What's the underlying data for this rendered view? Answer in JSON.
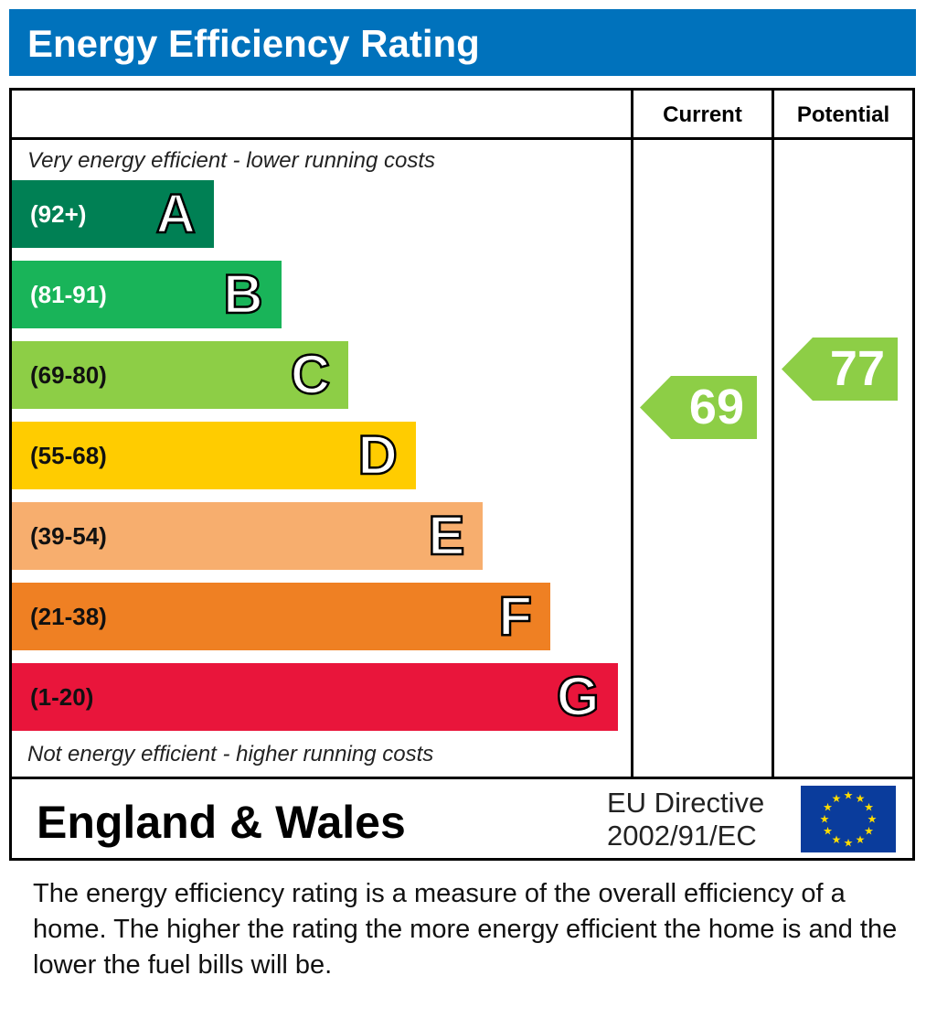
{
  "title": "Energy Efficiency Rating",
  "columns": {
    "current": "Current",
    "potential": "Potential"
  },
  "top_note": "Very energy efficient - lower running costs",
  "bottom_note": "Not energy efficient - higher running costs",
  "region": "England & Wales",
  "directive": {
    "line1": "EU Directive",
    "line2": "2002/91/EC"
  },
  "flag": "eu-flag-icon",
  "description": "The energy efficiency rating is a measure of the overall efficiency of a home.  The higher the rating the more energy efficient the home is and the lower the fuel bills will be.",
  "chart_data": {
    "type": "bar",
    "bands": [
      {
        "letter": "A",
        "range": "(92+)",
        "color": "#008054",
        "text_color": "#ffffff"
      },
      {
        "letter": "B",
        "range": "(81-91)",
        "color": "#19b459",
        "text_color": "#ffffff"
      },
      {
        "letter": "C",
        "range": "(69-80)",
        "color": "#8dce46",
        "text_color": "#111111"
      },
      {
        "letter": "D",
        "range": "(55-68)",
        "color": "#ffcc00",
        "text_color": "#111111"
      },
      {
        "letter": "E",
        "range": "(39-54)",
        "color": "#f7ae6e",
        "text_color": "#111111"
      },
      {
        "letter": "F",
        "range": "(21-38)",
        "color": "#ef8023",
        "text_color": "#111111"
      },
      {
        "letter": "G",
        "range": "(1-20)",
        "color": "#e9153b",
        "text_color": "#111111"
      }
    ],
    "current": {
      "value": "69",
      "band": "C",
      "color": "#8dce46"
    },
    "potential": {
      "value": "77",
      "band": "C",
      "color": "#8dce46"
    }
  }
}
